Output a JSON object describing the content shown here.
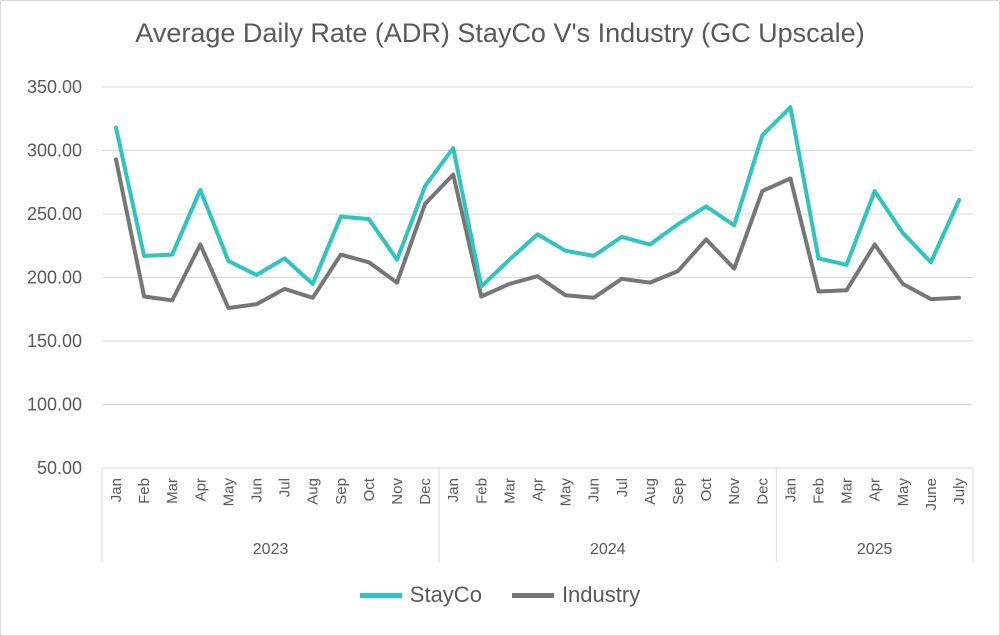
{
  "chart_data": {
    "type": "line",
    "title": "Average Daily Rate (ADR) StayCo V's Industry (GC Upscale)",
    "xlabel": "",
    "ylabel": "",
    "ylim": [
      50,
      350
    ],
    "yticks": [
      "50.00",
      "100.00",
      "150.00",
      "200.00",
      "250.00",
      "300.00",
      "350.00"
    ],
    "grid": true,
    "legend_position": "bottom",
    "categories": [
      "Jan",
      "Feb",
      "Mar",
      "Apr",
      "May",
      "Jun",
      "Jul",
      "Aug",
      "Sep",
      "Oct",
      "Nov",
      "Dec",
      "Jan",
      "Feb",
      "Mar",
      "Apr",
      "May",
      "Jun",
      "Jul",
      "Aug",
      "Sep",
      "Oct",
      "Nov",
      "Dec",
      "Jan",
      "Feb",
      "Mar",
      "Apr",
      "May",
      "June",
      "July"
    ],
    "year_groups": [
      {
        "label": "2023",
        "count": 12
      },
      {
        "label": "2024",
        "count": 12
      },
      {
        "label": "2025",
        "count": 7
      }
    ],
    "series": [
      {
        "name": "StayCo",
        "color": "#2ec4c0",
        "values": [
          318,
          217,
          218,
          269,
          213,
          202,
          215,
          195,
          248,
          246,
          214,
          272,
          302,
          193,
          214,
          234,
          221,
          217,
          232,
          226,
          242,
          256,
          241,
          312,
          334,
          215,
          210,
          268,
          235,
          212,
          261
        ]
      },
      {
        "name": "Industry",
        "color": "#767676",
        "values": [
          293,
          185,
          182,
          226,
          176,
          179,
          191,
          184,
          218,
          212,
          196,
          258,
          281,
          185,
          195,
          201,
          186,
          184,
          199,
          196,
          205,
          230,
          207,
          268,
          278,
          189,
          190,
          226,
          195,
          183,
          184
        ]
      }
    ]
  }
}
